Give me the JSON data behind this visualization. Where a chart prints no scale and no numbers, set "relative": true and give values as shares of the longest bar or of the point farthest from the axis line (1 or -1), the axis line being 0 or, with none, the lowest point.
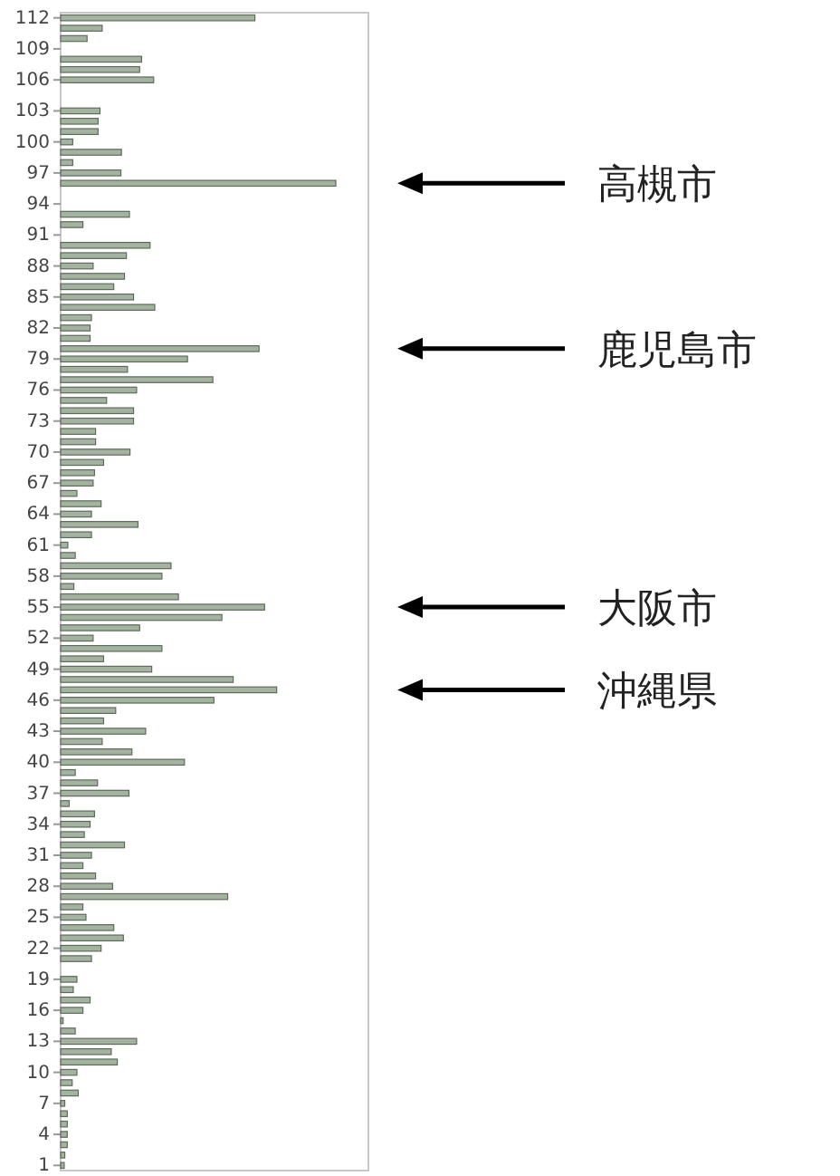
{
  "chart_data": {
    "type": "bar",
    "orientation": "horizontal",
    "relative": true,
    "color": "#a3b39f",
    "categories": [
      "112",
      null,
      null,
      "109",
      null,
      null,
      "106",
      null,
      null,
      "103",
      null,
      null,
      "100",
      null,
      null,
      "97",
      null,
      null,
      "94",
      null,
      null,
      "91",
      null,
      null,
      "88",
      null,
      null,
      "85",
      null,
      null,
      "82",
      null,
      null,
      "79",
      null,
      null,
      "76",
      null,
      null,
      "73",
      null,
      null,
      "70",
      null,
      null,
      "67",
      null,
      null,
      "64",
      null,
      null,
      "61",
      null,
      null,
      "58",
      null,
      null,
      "55",
      null,
      null,
      "52",
      null,
      null,
      "49",
      null,
      null,
      "46",
      null,
      null,
      "43",
      null,
      null,
      "40",
      null,
      null,
      "37",
      null,
      null,
      "34",
      null,
      null,
      "31",
      null,
      null,
      "28",
      null,
      null,
      "25",
      null,
      null,
      "22",
      null,
      null,
      "19",
      null,
      null,
      "16",
      null,
      null,
      "13",
      null,
      null,
      "10",
      null,
      null,
      "7",
      null,
      null,
      "4",
      null,
      null,
      "1"
    ],
    "values": [
      0.706,
      0.151,
      0.096,
      0,
      0.294,
      0.287,
      0.338,
      0,
      0,
      0.143,
      0.136,
      0.136,
      0.044,
      0.221,
      0.044,
      0.219,
      1,
      0,
      0,
      0.25,
      0.081,
      0,
      0.325,
      0.239,
      0.118,
      0.232,
      0.193,
      0.265,
      0.342,
      0.112,
      0.107,
      0.107,
      0.721,
      0.461,
      0.243,
      0.553,
      0.276,
      0.167,
      0.265,
      0.265,
      0.127,
      0.127,
      0.252,
      0.156,
      0.123,
      0.118,
      0.059,
      0.147,
      0.112,
      0.281,
      0.112,
      0.026,
      0.053,
      0.401,
      0.368,
      0.048,
      0.428,
      0.741,
      0.586,
      0.287,
      0.118,
      0.368,
      0.156,
      0.331,
      0.627,
      0.785,
      0.557,
      0.2,
      0.156,
      0.309,
      0.151,
      0.259,
      0.45,
      0.053,
      0.134,
      0.248,
      0.031,
      0.123,
      0.107,
      0.086,
      0.232,
      0.112,
      0.081,
      0.127,
      0.189,
      0.607,
      0.081,
      0.092,
      0.193,
      0.228,
      0.147,
      0.112,
      0,
      0.059,
      0.046,
      0.107,
      0.081,
      0.009,
      0.053,
      0.276,
      0.184,
      0.206,
      0.059,
      0.042,
      0.064,
      0.015,
      0.024,
      0.024,
      0.024,
      0.024,
      0.015,
      0.013
    ],
    "annotations": [
      "高槻市",
      "鹿児島市",
      "大阪市",
      "沖縄県"
    ]
  }
}
